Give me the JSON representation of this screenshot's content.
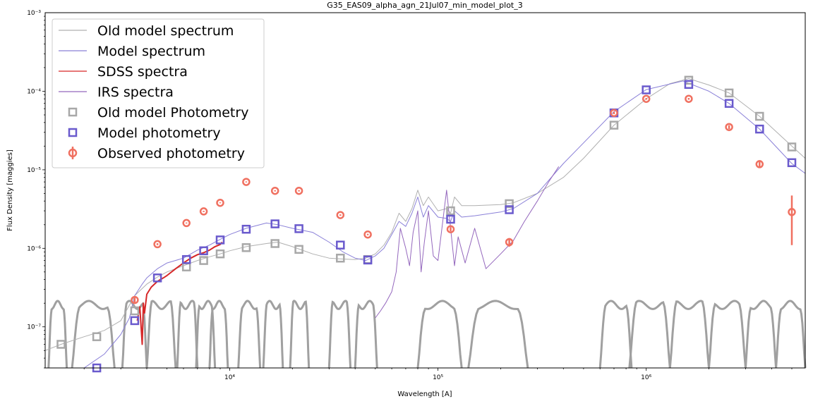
{
  "chart_data": {
    "type": "scatter",
    "title": "G35_EAS09_alpha_agn_21Jul07_min_model_plot_3",
    "xlabel": "Wavelength [A]",
    "ylabel": "Flux Density [maggies]",
    "xscale": "log",
    "yscale": "log",
    "xlim": [
      1300,
      5800000
    ],
    "ylim": [
      3e-08,
      0.001
    ],
    "x_tick_labels": [
      {
        "value": 10000,
        "label": "10⁴"
      },
      {
        "value": 100000,
        "label": "10⁵"
      },
      {
        "value": 1000000,
        "label": "10⁶"
      }
    ],
    "y_tick_labels": [
      {
        "value": 1e-07,
        "label": "10⁻⁷"
      },
      {
        "value": 1e-06,
        "label": "10⁻⁶"
      },
      {
        "value": 1e-05,
        "label": "10⁻⁵"
      },
      {
        "value": 0.0001,
        "label": "10⁻⁴"
      },
      {
        "value": 0.001,
        "label": "10⁻³"
      }
    ],
    "legend": {
      "placement": "upper-left",
      "entries": [
        {
          "label": "Old model spectrum",
          "kind": "line",
          "color": "#b0b0b0"
        },
        {
          "label": "Model spectrum",
          "kind": "line",
          "color": "#8a80d8"
        },
        {
          "label": "SDSS spectra",
          "kind": "line",
          "color": "#d62728"
        },
        {
          "label": "IRS spectra",
          "kind": "line",
          "color": "#9467bd"
        },
        {
          "label": "Old model Photometry",
          "kind": "square",
          "color": "#a8a8a8"
        },
        {
          "label": "Model photometry",
          "kind": "square",
          "color": "#6a5acd"
        },
        {
          "label": "Observed photometry",
          "kind": "errorbar",
          "color": "#f07060"
        }
      ]
    },
    "series": [
      {
        "name": "Old model spectrum",
        "kind": "line",
        "color": "#b0b0b0",
        "x": [
          1300,
          1550,
          2000,
          2500,
          3000,
          3500,
          4000,
          4500,
          5000,
          6000,
          7000,
          8000,
          9000,
          10000,
          12000,
          15000,
          17000,
          20000,
          25000,
          30000,
          35000,
          40000,
          45000,
          50000,
          55000,
          60000,
          65000,
          70000,
          75000,
          80000,
          85000,
          90000,
          100000,
          110000,
          115000,
          120000,
          130000,
          150000,
          200000,
          230000,
          300000,
          400000,
          500000,
          700000,
          1000000,
          1300000,
          1600000,
          2000000,
          2500000,
          3500000,
          5000000,
          5800000
        ],
        "y": [
          5e-08,
          6e-08,
          7.5e-08,
          9e-08,
          1.2e-07,
          2.5e-07,
          3.5e-07,
          4.3e-07,
          5e-07,
          6e-07,
          7e-07,
          7.8e-07,
          8.5e-07,
          9.3e-07,
          1.05e-06,
          1.15e-06,
          1.2e-06,
          1.05e-06,
          8.5e-07,
          7.5e-07,
          7.3e-07,
          7.2e-07,
          7.5e-07,
          8.5e-07,
          1.1e-06,
          1.6e-06,
          2.8e-06,
          2.2e-06,
          3.2e-06,
          5.5e-06,
          3.5e-06,
          4.5e-06,
          3e-06,
          3.2e-06,
          2.8e-06,
          4.5e-06,
          3.5e-06,
          3.5e-06,
          3.6e-06,
          3.8e-06,
          5e-06,
          8e-06,
          1.4e-05,
          3.7e-05,
          8e-05,
          0.000125,
          0.000145,
          0.00012,
          9.5e-05,
          4.8e-05,
          2e-05,
          1.4e-05
        ]
      },
      {
        "name": "Model spectrum",
        "kind": "line",
        "color": "#8a80d8",
        "x": [
          2000,
          2500,
          3000,
          3300,
          3500,
          3800,
          4000,
          4500,
          5000,
          6000,
          7000,
          8000,
          9000,
          10000,
          12000,
          15000,
          17000,
          20000,
          25000,
          30000,
          35000,
          40000,
          45000,
          50000,
          55000,
          60000,
          65000,
          70000,
          75000,
          80000,
          85000,
          90000,
          100000,
          110000,
          115000,
          120000,
          130000,
          150000,
          200000,
          230000,
          300000,
          400000,
          500000,
          700000,
          1000000,
          1500000,
          2000000,
          2500000,
          3500000,
          5000000,
          5800000
        ],
        "y": [
          3e-08,
          4.5e-08,
          8e-08,
          1.3e-07,
          2.5e-07,
          3.5e-07,
          4.2e-07,
          5.5e-07,
          6.5e-07,
          7.5e-07,
          9.5e-07,
          1.1e-06,
          1.3e-06,
          1.5e-06,
          1.8e-06,
          2.1e-06,
          2e-06,
          1.8e-06,
          1.6e-06,
          1.2e-06,
          9e-07,
          7.5e-07,
          7e-07,
          8e-07,
          1e-06,
          1.5e-06,
          2.2e-06,
          1.9e-06,
          2.8e-06,
          4.5e-06,
          2.5e-06,
          3.5e-06,
          2.5e-06,
          2.4e-06,
          2.2e-06,
          3e-06,
          2.5e-06,
          2.6e-06,
          2.9e-06,
          3.2e-06,
          5e-06,
          1.2e-05,
          2.2e-05,
          5.5e-05,
          0.000105,
          0.000135,
          0.0001,
          7e-05,
          3.3e-05,
          1.2e-05,
          9e-06
        ]
      },
      {
        "name": "SDSS spectra",
        "kind": "line",
        "color": "#d62728",
        "x": [
          3600,
          3700,
          3800,
          3850,
          3900,
          4000,
          4200,
          4500,
          4800,
          5000,
          5500,
          6000,
          6500,
          7000,
          7500,
          8000,
          8500,
          9000,
          9200
        ],
        "y": [
          1.2e-07,
          1.8e-07,
          6e-08,
          2e-07,
          1.5e-07,
          2.6e-07,
          3.2e-07,
          3.8e-07,
          4.2e-07,
          4.5e-07,
          5.5e-07,
          6.5e-07,
          7.5e-07,
          8.3e-07,
          8.8e-07,
          9.5e-07,
          1.05e-06,
          1.12e-06,
          1.2e-06
        ]
      },
      {
        "name": "IRS spectra",
        "kind": "line",
        "color": "#9467bd",
        "x": [
          50000,
          53000,
          56000,
          60000,
          63000,
          66000,
          70000,
          73000,
          76000,
          80000,
          83000,
          86000,
          90000,
          95000,
          100000,
          110000,
          115000,
          120000,
          125000,
          135000,
          150000,
          170000,
          200000,
          230000,
          260000,
          300000,
          340000,
          380000
        ],
        "y": [
          1.3e-07,
          1.6e-07,
          2e-07,
          2.8e-07,
          5e-07,
          1.8e-06,
          1e-06,
          6e-07,
          1.6e-06,
          3e-06,
          5e-07,
          1.2e-06,
          3e-06,
          8e-07,
          7e-07,
          5.5e-06,
          1.8e-06,
          6e-07,
          1.4e-06,
          6.5e-07,
          1.8e-06,
          5.5e-07,
          8.5e-07,
          1.25e-06,
          2.2e-06,
          4e-06,
          7e-06,
          1.1e-05
        ]
      },
      {
        "name": "Old model Photometry",
        "kind": "square",
        "color": "#a8a8a8",
        "x": [
          1550,
          2300,
          3500,
          6200,
          7500,
          9000,
          12000,
          16500,
          21500,
          34000,
          46000,
          115000,
          220000,
          700000,
          1600000,
          2500000,
          3500000,
          5000000
        ],
        "y": [
          6e-08,
          7.5e-08,
          1.6e-07,
          5.8e-07,
          7e-07,
          8.5e-07,
          1.02e-06,
          1.15e-06,
          9.7e-07,
          7.5e-07,
          7.2e-07,
          3e-06,
          3.7e-06,
          3.7e-05,
          0.000138,
          9.5e-05,
          4.8e-05,
          1.95e-05
        ]
      },
      {
        "name": "Model photometry",
        "kind": "square",
        "color": "#6a5acd",
        "x": [
          2300,
          3500,
          4500,
          6200,
          7500,
          9000,
          12000,
          16500,
          21500,
          34000,
          46000,
          115000,
          220000,
          700000,
          1000000,
          1600000,
          2500000,
          3500000,
          5000000
        ],
        "y": [
          3e-08,
          1.2e-07,
          4.2e-07,
          7.2e-07,
          9.3e-07,
          1.28e-06,
          1.75e-06,
          2.05e-06,
          1.78e-06,
          1.1e-06,
          7.1e-07,
          2.35e-06,
          3.1e-06,
          5.3e-05,
          0.000104,
          0.000122,
          7e-05,
          3.3e-05,
          1.23e-05
        ]
      },
      {
        "name": "Observed photometry",
        "kind": "errorbar",
        "color": "#f07060",
        "x": [
          3500,
          4500,
          6200,
          7500,
          9000,
          12000,
          16500,
          21500,
          34000,
          46000,
          115000,
          220000,
          700000,
          1000000,
          1600000,
          2500000,
          3500000,
          5000000
        ],
        "y": [
          2.2e-07,
          1.13e-06,
          2.1e-06,
          2.95e-06,
          3.8e-06,
          7e-06,
          5.4e-06,
          5.4e-06,
          2.65e-06,
          1.5e-06,
          1.75e-06,
          1.2e-06,
          5.3e-05,
          8e-05,
          8e-05,
          3.5e-05,
          1.18e-05,
          2.9e-06
        ],
        "yerr_low": [
          2.05e-07,
          1.1e-06,
          2.07e-06,
          2.9e-06,
          3.75e-06,
          6.9e-06,
          5.3e-06,
          5.3e-06,
          2.6e-06,
          1.47e-06,
          1.65e-06,
          1.05e-06,
          5.1e-05,
          7.8e-05,
          7.8e-05,
          3.3e-05,
          1.05e-05,
          1.1e-06
        ],
        "yerr_high": [
          2.35e-07,
          1.16e-06,
          2.13e-06,
          3e-06,
          3.85e-06,
          7.1e-06,
          5.5e-06,
          5.5e-06,
          2.7e-06,
          1.53e-06,
          1.85e-06,
          1.35e-06,
          5.5e-05,
          8.2e-05,
          8.2e-05,
          3.7e-05,
          1.32e-05,
          4.7e-06
        ]
      }
    ],
    "filter_curves": {
      "color": "#a0a0a0",
      "peak": 1.9e-07,
      "floor": 2.6e-08,
      "bands": [
        [
          1350,
          1650
        ],
        [
          1750,
          2800
        ],
        [
          3050,
          4000
        ],
        [
          4000,
          5500
        ],
        [
          5600,
          7000
        ],
        [
          6900,
          8500
        ],
        [
          8000,
          9800
        ],
        [
          11000,
          14000
        ],
        [
          14500,
          18000
        ],
        [
          19500,
          24000
        ],
        [
          30000,
          38000
        ],
        [
          40000,
          51000
        ],
        [
          80000,
          130000
        ],
        [
          140000,
          270000
        ],
        [
          600000,
          850000
        ],
        [
          830000,
          1300000
        ],
        [
          1300000,
          2000000
        ],
        [
          2000000,
          3000000
        ],
        [
          3000000,
          4200000
        ],
        [
          4200000,
          5800000
        ]
      ]
    }
  }
}
